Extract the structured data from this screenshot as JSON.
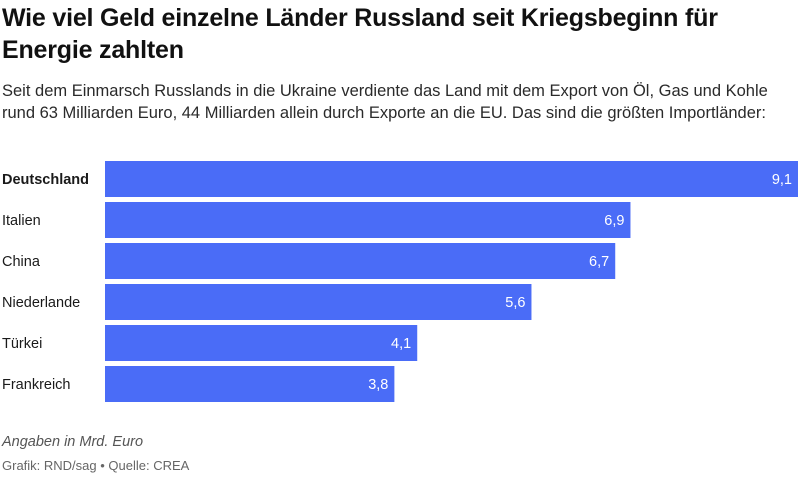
{
  "title": "Wie viel Geld einzelne Länder Russland seit Kriegsbeginn für Energie zahlten",
  "subtitle": "Seit dem Einmarsch Russlands in die Ukraine verdiente das Land mit dem Export von Öl, Gas und Kohle rund 63 Milliarden Euro, 44 Milliarden allein durch Exporte an die EU. Das sind die größten Importländer:",
  "note": "Angaben in Mrd. Euro",
  "credit": "Grafik: RND/sag • Quelle: CREA",
  "colors": {
    "bar": "#4a6cf7"
  },
  "chart_data": {
    "type": "bar",
    "orientation": "horizontal",
    "categories": [
      "Deutschland",
      "Italien",
      "China",
      "Niederlande",
      "Türkei",
      "Frankreich"
    ],
    "values": [
      9.1,
      6.9,
      6.7,
      5.6,
      4.1,
      3.8
    ],
    "value_labels": [
      "9,1",
      "6,9",
      "6,7",
      "5,6",
      "4,1",
      "3,8"
    ],
    "highlighted": [
      "Deutschland"
    ],
    "xlim": [
      0,
      9.1
    ],
    "grid": false,
    "legend": "none"
  }
}
